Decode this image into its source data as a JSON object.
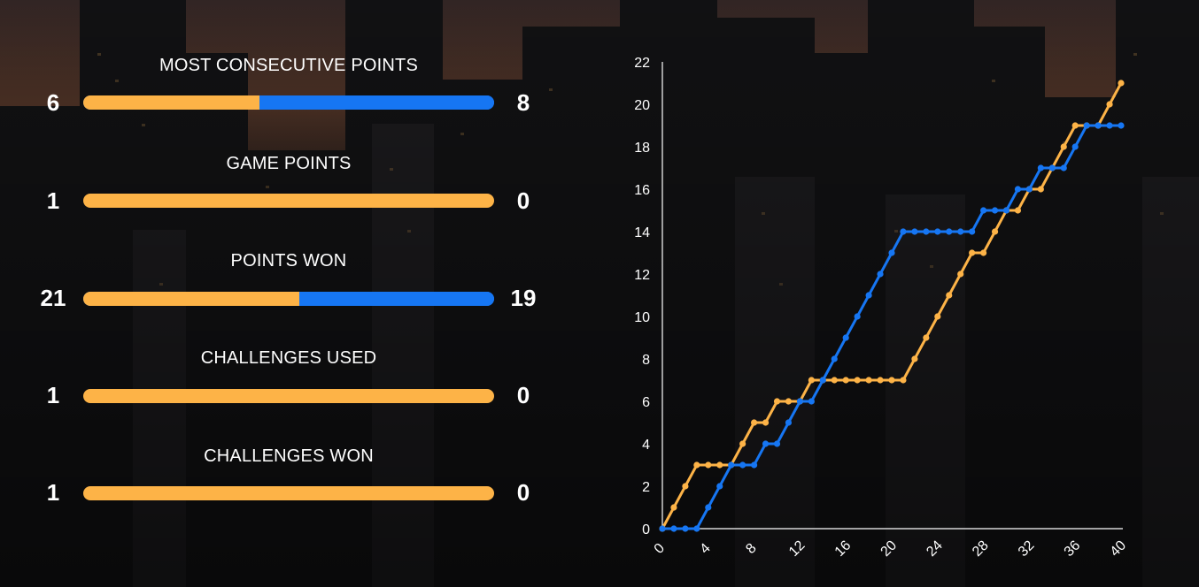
{
  "colors": {
    "player_a": "#fdb347",
    "player_b": "#1676f3",
    "text": "#ffffff",
    "axis": "#ffffff"
  },
  "stats": [
    {
      "label": "MOST CONSECUTIVE POINTS",
      "left": "6",
      "right": "8",
      "left_value": 6,
      "right_value": 8
    },
    {
      "label": "GAME POINTS",
      "left": "1",
      "right": "0",
      "left_value": 1,
      "right_value": 0
    },
    {
      "label": "POINTS WON",
      "left": "21",
      "right": "19",
      "left_value": 21,
      "right_value": 19
    },
    {
      "label": "CHALLENGES USED",
      "left": "1",
      "right": "0",
      "left_value": 1,
      "right_value": 0
    },
    {
      "label": "CHALLENGES WON",
      "left": "1",
      "right": "0",
      "left_value": 1,
      "right_value": 0
    }
  ],
  "chart_data": {
    "type": "line",
    "title": "",
    "xlabel": "",
    "ylabel": "",
    "xlim": [
      0,
      40
    ],
    "ylim": [
      0,
      22
    ],
    "x_ticks": [
      0,
      4,
      8,
      12,
      16,
      20,
      24,
      28,
      32,
      36,
      40
    ],
    "y_ticks": [
      0,
      2,
      4,
      6,
      8,
      10,
      12,
      14,
      16,
      18,
      20,
      22
    ],
    "grid": false,
    "legend": "none",
    "x": [
      0,
      1,
      2,
      3,
      4,
      5,
      6,
      7,
      8,
      9,
      10,
      11,
      12,
      13,
      14,
      15,
      16,
      17,
      18,
      19,
      20,
      21,
      22,
      23,
      24,
      25,
      26,
      27,
      28,
      29,
      30,
      31,
      32,
      33,
      34,
      35,
      36,
      37,
      38,
      39,
      40
    ],
    "series": [
      {
        "color": "#fdb347",
        "values": [
          0,
          1,
          2,
          3,
          3,
          3,
          3,
          4,
          5,
          5,
          6,
          6,
          6,
          7,
          7,
          7,
          7,
          7,
          7,
          7,
          7,
          7,
          8,
          9,
          10,
          11,
          12,
          13,
          13,
          14,
          15,
          15,
          16,
          16,
          17,
          18,
          19,
          19,
          19,
          20,
          21
        ]
      },
      {
        "color": "#1676f3",
        "values": [
          0,
          0,
          0,
          0,
          1,
          2,
          3,
          3,
          3,
          4,
          4,
          5,
          6,
          6,
          7,
          8,
          9,
          10,
          11,
          12,
          13,
          14,
          14,
          14,
          14,
          14,
          14,
          14,
          15,
          15,
          15,
          16,
          16,
          17,
          17,
          17,
          18,
          19,
          19,
          19,
          19
        ]
      }
    ]
  }
}
